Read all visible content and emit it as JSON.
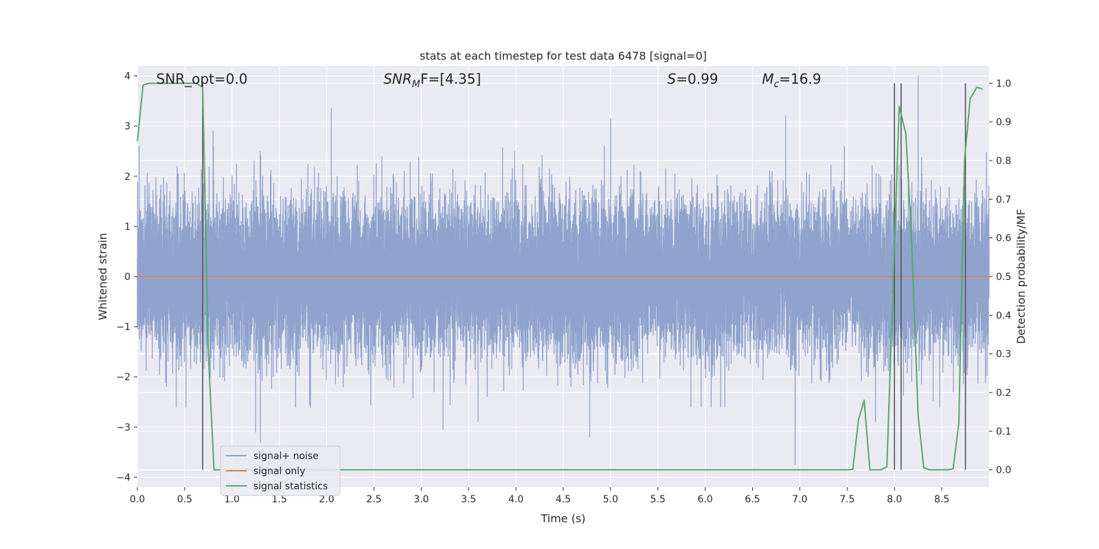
{
  "chart_data": {
    "type": "line",
    "title": "stats at each timestep for test data 6478 [signal=0]",
    "xlabel": "Time (s)",
    "ylabel": "Whitened strain",
    "y2label": "Detection probability/MF",
    "xlim": [
      0.0,
      9.0
    ],
    "ylim": [
      -4.2,
      4.2
    ],
    "y2lim": [
      -0.045,
      1.045
    ],
    "x_ticks": [
      "0.0",
      "0.5",
      "1.0",
      "1.5",
      "2.0",
      "2.5",
      "3.0",
      "3.5",
      "4.0",
      "4.5",
      "5.0",
      "5.5",
      "6.0",
      "6.5",
      "7.0",
      "7.5",
      "8.0",
      "8.5"
    ],
    "y_ticks": [
      "4",
      "3",
      "2",
      "1",
      "0",
      "−1",
      "−2",
      "−3",
      "−4"
    ],
    "y2_ticks": [
      "1.0",
      "0.9",
      "0.8",
      "0.7",
      "0.6",
      "0.5",
      "0.4",
      "0.3",
      "0.2",
      "0.1",
      "0.0"
    ],
    "grid": true,
    "legend_position": "lower-left",
    "annotations": [
      {
        "text": "SNR_opt=0.0",
        "x": 0.2
      },
      {
        "name": "SNR",
        "sub": "M",
        "tail": "F=[4.35]",
        "x": 2.6
      },
      {
        "name": "S",
        "sub": "",
        "tail": "=0.99",
        "x": 5.6
      },
      {
        "name": "M",
        "sub": "c",
        "tail": "=16.9",
        "x": 6.6
      }
    ],
    "series": [
      {
        "name": "signal+ noise",
        "color": "#8fa3cc",
        "kind": "noise",
        "sample_rate_hz": 2048,
        "seed": 6478,
        "std": 0.75,
        "extrema": [
          {
            "x": 0.8,
            "y": 2.9
          },
          {
            "x": 1.25,
            "y": -3.1
          },
          {
            "x": 1.3,
            "y": -3.3
          },
          {
            "x": 2.05,
            "y": 3.35
          },
          {
            "x": 3.23,
            "y": -3.05
          },
          {
            "x": 3.6,
            "y": -2.9
          },
          {
            "x": 4.78,
            "y": -3.2
          },
          {
            "x": 5.0,
            "y": 3.15
          },
          {
            "x": 6.85,
            "y": 3.2
          },
          {
            "x": 6.95,
            "y": -3.75
          },
          {
            "x": 8.25,
            "y": 4.0
          },
          {
            "x": 8.0,
            "y": 3.3
          },
          {
            "x": 7.8,
            "y": -2.9
          }
        ]
      },
      {
        "name": "signal only",
        "color": "#dd8452",
        "kind": "line",
        "x": [
          0.0,
          9.0
        ],
        "y": [
          0.0,
          0.0
        ]
      },
      {
        "name": "signal statistics",
        "color": "#55a868",
        "axis": "right",
        "kind": "line",
        "x": [
          0.0,
          0.06,
          0.12,
          0.18,
          0.25,
          0.31,
          0.37,
          0.43,
          0.5,
          0.56,
          0.62,
          0.69,
          0.75,
          0.81,
          0.87,
          0.93,
          1.0,
          7.5,
          7.56,
          7.62,
          7.68,
          7.74,
          7.8,
          7.86,
          7.92,
          8.05,
          8.12,
          8.18,
          8.25,
          8.31,
          8.37,
          8.43,
          8.5,
          8.56,
          8.62,
          8.68,
          8.74,
          8.8,
          8.87,
          8.93
        ],
        "y": [
          0.85,
          0.995,
          1.0,
          1.0,
          1.0,
          1.0,
          1.0,
          1.0,
          1.0,
          1.0,
          1.0,
          0.99,
          0.3,
          0.0,
          0.0,
          0.0,
          0.0,
          0.0,
          0.001,
          0.13,
          0.18,
          0.0,
          0.0,
          0.0,
          0.008,
          0.94,
          0.87,
          0.6,
          0.14,
          0.005,
          0.0,
          0.0,
          0.0,
          0.0,
          0.003,
          0.12,
          0.8,
          0.96,
          0.99,
          0.985
        ]
      }
    ],
    "vertical_lines": [
      0.69,
      8.0,
      8.07,
      8.75
    ],
    "vertical_line_color": "#555555"
  }
}
